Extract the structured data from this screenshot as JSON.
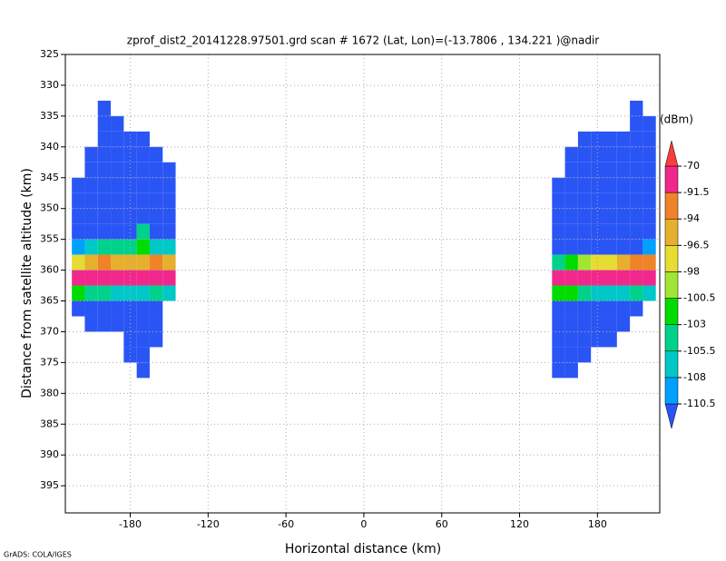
{
  "chart_data": {
    "type": "heatmap",
    "title": "zprof_dist2_20141228.97501.grd  scan # 1672  (Lat, Lon)=(-13.7806 , 134.221 )@nadir",
    "xlabel": "Horizontal distance (km)",
    "ylabel": "Distance from satellite altitude (km)",
    "xlim": [
      -230,
      228
    ],
    "ylim": [
      325,
      399.4
    ],
    "y_inverted": true,
    "xticks": [
      -180,
      -120,
      -60,
      0,
      60,
      120,
      180
    ],
    "yticks": [
      325,
      330,
      335,
      340,
      345,
      350,
      355,
      360,
      365,
      370,
      375,
      380,
      385,
      390,
      395
    ],
    "grid": true,
    "colorbar": {
      "label": "(dBm)",
      "levels": [
        -110.5,
        -108,
        -105.5,
        -103,
        -100.5,
        -98,
        -96.5,
        -94,
        -91.5,
        -70
      ],
      "colors": [
        "#2a55f5",
        "#00a0ff",
        "#00c8c8",
        "#00d28c",
        "#00dc00",
        "#a0e632",
        "#e6dc32",
        "#e6af2d",
        "#f08228",
        "#f0288c",
        "#fa3c3c"
      ]
    },
    "swaths": [
      {
        "x_edges": [
          -225,
          -215,
          -205,
          -195,
          -185,
          -175,
          -165,
          -155,
          -145
        ],
        "y_edges": [
          332.5,
          335,
          337.5,
          340,
          342.5,
          345,
          347.5,
          350,
          352.5,
          355,
          357.5,
          360,
          362.5,
          365,
          367.5,
          370,
          372.5,
          375,
          377.5
        ],
        "values": [
          [
            null,
            null,
            -112,
            null,
            null,
            null,
            null,
            null
          ],
          [
            null,
            null,
            -112,
            -112,
            null,
            null,
            null,
            null
          ],
          [
            null,
            null,
            -112,
            -112,
            -112,
            -112,
            null,
            null
          ],
          [
            null,
            -112,
            -112,
            -112,
            -112,
            -112,
            -112,
            null
          ],
          [
            null,
            -112,
            -112,
            -112,
            -112,
            -112,
            -112,
            -112
          ],
          [
            -112,
            -112,
            -112,
            -112,
            -112,
            -112,
            -112,
            -112
          ],
          [
            -112,
            -112,
            -112,
            -112,
            -112,
            -112,
            -112,
            -112
          ],
          [
            -112,
            -112,
            -112,
            -112,
            -112,
            -112,
            -112,
            -112
          ],
          [
            -112,
            -112,
            -112,
            -112,
            -112,
            -104,
            -112,
            -112
          ],
          [
            -109,
            -106,
            -104,
            -104,
            -104,
            -101,
            -106,
            -108
          ],
          [
            -97,
            -95,
            -93,
            -95,
            -95,
            -95,
            -93,
            -95
          ],
          [
            -88,
            -86,
            -87,
            -88,
            -87,
            -88,
            -86,
            -87
          ],
          [
            -102,
            -104,
            -104,
            -106,
            -108,
            -108,
            -104,
            -108
          ],
          [
            -112,
            -112,
            -112,
            -112,
            -112,
            -112,
            -112,
            null
          ],
          [
            null,
            -112,
            -112,
            -112,
            -112,
            -112,
            -112,
            null
          ],
          [
            null,
            null,
            null,
            null,
            -112,
            -112,
            -112,
            null
          ],
          [
            null,
            null,
            null,
            null,
            -112,
            -112,
            null,
            null
          ],
          [
            null,
            null,
            null,
            null,
            null,
            -112,
            null,
            null
          ]
        ]
      },
      {
        "x_edges": [
          145,
          155,
          165,
          175,
          185,
          195,
          205,
          215,
          225
        ],
        "y_edges": [
          332.5,
          335,
          337.5,
          340,
          342.5,
          345,
          347.5,
          350,
          352.5,
          355,
          357.5,
          360,
          362.5,
          365,
          367.5,
          370,
          372.5,
          375,
          377.5
        ],
        "values": [
          [
            null,
            null,
            null,
            null,
            null,
            null,
            -112,
            null
          ],
          [
            null,
            null,
            null,
            null,
            null,
            null,
            -112,
            -112
          ],
          [
            null,
            null,
            -112,
            -112,
            -112,
            -112,
            -112,
            -112
          ],
          [
            null,
            -112,
            -112,
            -112,
            -112,
            -112,
            -112,
            -112
          ],
          [
            null,
            -112,
            -112,
            -112,
            -112,
            -112,
            -112,
            -112
          ],
          [
            -112,
            -112,
            -112,
            -112,
            -112,
            -112,
            -112,
            -112
          ],
          [
            -112,
            -112,
            -112,
            -112,
            -112,
            -112,
            -112,
            -112
          ],
          [
            -112,
            -112,
            -112,
            -112,
            -112,
            -112,
            -112,
            -112
          ],
          [
            -112,
            -112,
            -112,
            -112,
            -112,
            -112,
            -112,
            -112
          ],
          [
            -112,
            -112,
            -112,
            -112,
            -112,
            -112,
            -112,
            -109
          ],
          [
            -104,
            -103,
            -100,
            -98,
            -97,
            -95,
            -93,
            -92
          ],
          [
            -88,
            -86,
            -86,
            -87,
            -88,
            -88,
            -87,
            -86
          ],
          [
            -101,
            -102,
            -104,
            -106,
            -106,
            -106,
            -104,
            -106
          ],
          [
            -112,
            -112,
            -112,
            -112,
            -112,
            -112,
            -112,
            null
          ],
          [
            -112,
            -112,
            -112,
            -112,
            -112,
            -112,
            null,
            null
          ],
          [
            -112,
            -112,
            -112,
            -112,
            -112,
            null,
            null,
            null
          ],
          [
            -112,
            -112,
            -112,
            null,
            null,
            null,
            null,
            null
          ],
          [
            -112,
            -112,
            null,
            null,
            null,
            null,
            null,
            null
          ]
        ]
      }
    ],
    "credit": "GrADS: COLA/IGES"
  }
}
